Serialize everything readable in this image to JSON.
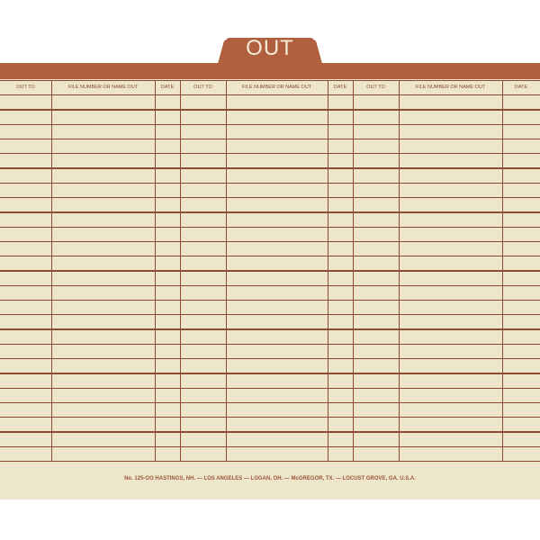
{
  "tab": {
    "label": "OUT"
  },
  "colors": {
    "brown": "#b0603f",
    "paper": "#ede6cb",
    "rule": "#8e4b34"
  },
  "columns": [
    {
      "label": "OUT TO"
    },
    {
      "label": "FILE NUMBER OR NAME OUT"
    },
    {
      "label": "DATE"
    },
    {
      "label": "OUT TO"
    },
    {
      "label": "FILE NUMBER OR NAME OUT"
    },
    {
      "label": "DATE"
    },
    {
      "label": "OUT TO"
    },
    {
      "label": "FILE NUMBER OR NAME OUT"
    },
    {
      "label": "DATE"
    }
  ],
  "row_count": 25,
  "footer": "No. 125-OO HASTINGS, NH. — LOS ANGELES — LOGAN, OH. — McGREGOR, TX. — LOCUST GROVE, GA. U.S.A."
}
